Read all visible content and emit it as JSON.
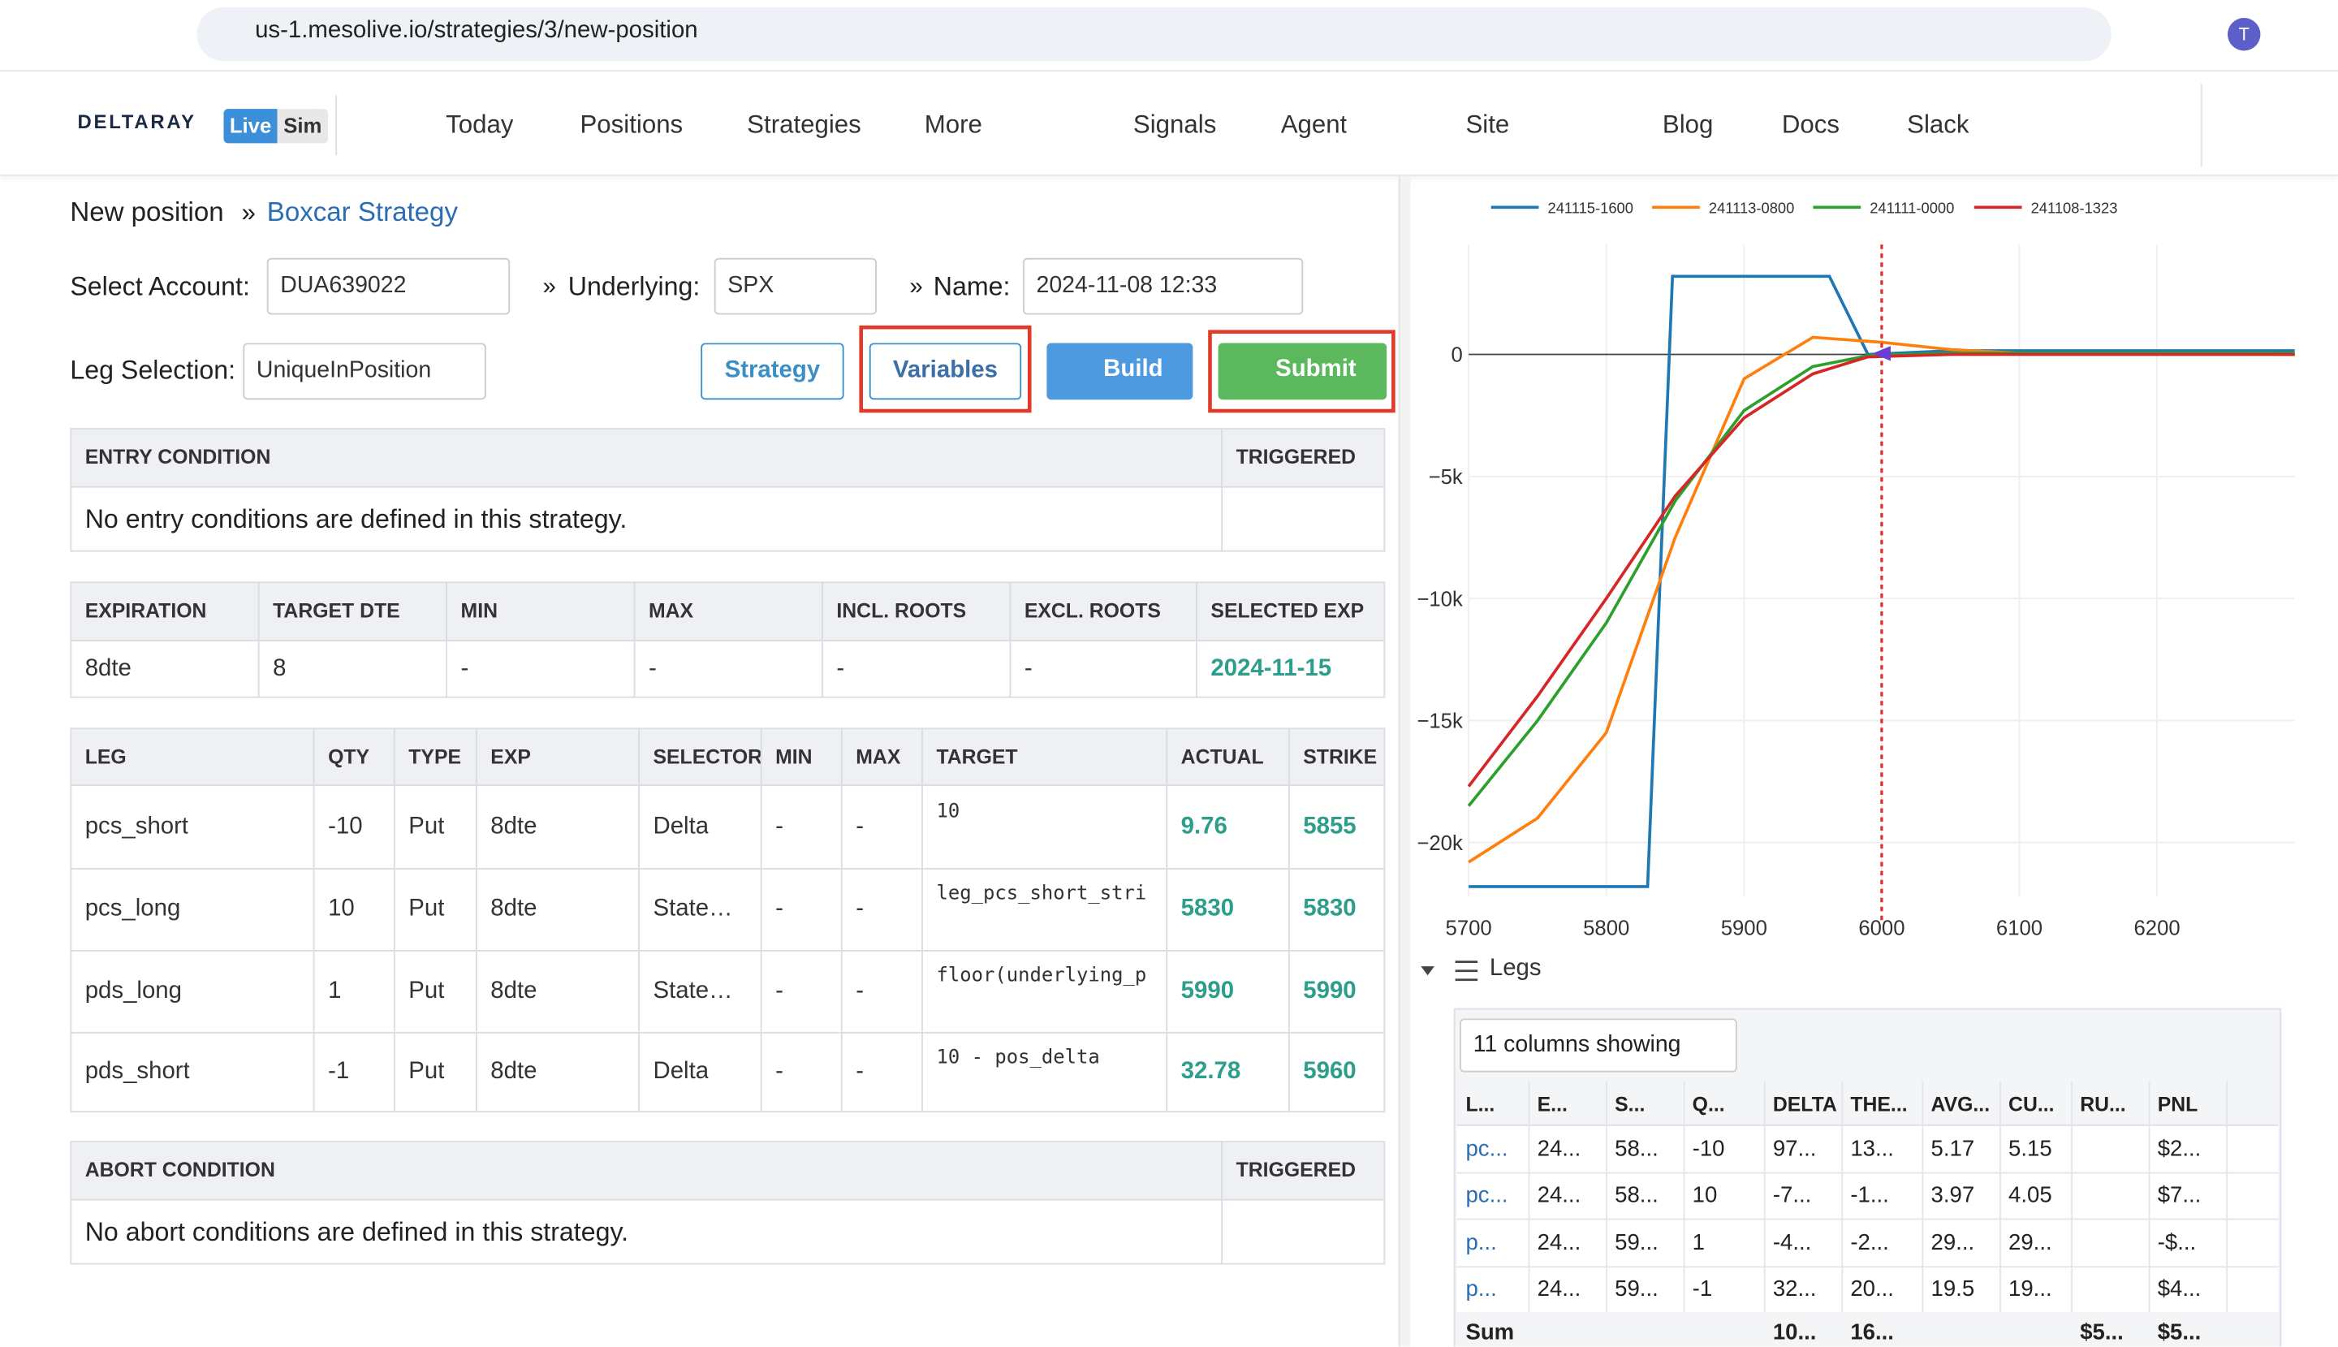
{
  "browser": {
    "url": "us-1.mesolive.io/strategies/3/new-position",
    "avatar": "T"
  },
  "nav": {
    "brand": "DELTARAY",
    "modes": [
      "Live",
      "Sim"
    ],
    "items": [
      "Today",
      "Positions",
      "Strategies",
      "More",
      "Signals",
      "Agent",
      "Site",
      "Blog",
      "Docs",
      "Slack"
    ]
  },
  "breadcrumb": {
    "page": "New position",
    "separator": "»",
    "link": "Boxcar Strategy"
  },
  "form": {
    "account_label": "Select Account:",
    "account": "DUA639022",
    "underlying_label": "Underlying:",
    "underlying": "SPX",
    "name_label": "Name:",
    "name": "2024-11-08 12:33",
    "leg_label": "Leg Selection:",
    "leg": "UniqueInPosition",
    "buttons": [
      "Strategy",
      "Variables",
      "Build",
      "Submit"
    ]
  },
  "entry": {
    "headers": [
      "ENTRY CONDITION",
      "TRIGGERED"
    ],
    "message": "No entry conditions are defined in this strategy."
  },
  "expiration": {
    "headers": [
      "EXPIRATION",
      "TARGET DTE",
      "MIN",
      "MAX",
      "INCL. ROOTS",
      "EXCL. ROOTS",
      "SELECTED EXP"
    ],
    "rows": [
      [
        "8dte",
        "8",
        "-",
        "-",
        "-",
        "-",
        "2024-11-15"
      ]
    ]
  },
  "legs": {
    "headers": [
      "LEG",
      "QTY",
      "TYPE",
      "EXP",
      "SELECTOR",
      "MIN",
      "MAX",
      "TARGET",
      "ACTUAL",
      "STRIKE"
    ],
    "rows": [
      [
        "pcs_short",
        "-10",
        "Put",
        "8dte",
        "Delta",
        "-",
        "-",
        "10",
        "9.76",
        "5855"
      ],
      [
        "pcs_long",
        "10",
        "Put",
        "8dte",
        "State…",
        "-",
        "-",
        "leg_pcs_short_stri",
        "5830",
        "5830"
      ],
      [
        "pds_long",
        "1",
        "Put",
        "8dte",
        "State…",
        "-",
        "-",
        "floor(underlying_p",
        "5990",
        "5990"
      ],
      [
        "pds_short",
        "-1",
        "Put",
        "8dte",
        "Delta",
        "-",
        "-",
        "10 - pos_delta",
        "32.78",
        "5960"
      ]
    ]
  },
  "abort": {
    "headers": [
      "ABORT CONDITION",
      "TRIGGERED"
    ],
    "message": "No abort conditions are defined in this strategy."
  },
  "chart_data": {
    "type": "line",
    "xlim": [
      5700,
      6300
    ],
    "ylim": [
      -22200,
      4500
    ],
    "xticks": [
      5700,
      5800,
      5900,
      6000,
      6100,
      6200
    ],
    "yticks": [
      0,
      {
        "value": -5000,
        "label": "−5k"
      },
      {
        "value": -10000,
        "label": "−10k"
      },
      {
        "value": -15000,
        "label": "−15k"
      },
      {
        "value": -20000,
        "label": "−20k"
      }
    ],
    "grid": true,
    "vline": 6000,
    "vline_color": "#e03030",
    "series": [
      {
        "name": "241115-1600",
        "color": "#1f77b4",
        "x": [
          5700,
          5830,
          5848,
          5962,
          5990,
          6050,
          6300
        ],
        "values": [
          -21800,
          -21800,
          3200,
          3200,
          0,
          150,
          150
        ]
      },
      {
        "name": "241113-0800",
        "color": "#ff7f0e",
        "x": [
          5700,
          5750,
          5800,
          5850,
          5900,
          5950,
          6000,
          6050,
          6100,
          6300
        ],
        "values": [
          -20800,
          -19000,
          -15500,
          -7500,
          -1000,
          700,
          500,
          200,
          50,
          0
        ]
      },
      {
        "name": "241111-0000",
        "color": "#2ca02c",
        "x": [
          5700,
          5750,
          5800,
          5850,
          5900,
          5950,
          5990,
          6050,
          6300
        ],
        "values": [
          -18500,
          -15000,
          -11000,
          -6000,
          -2300,
          -500,
          -50,
          50,
          50
        ]
      },
      {
        "name": "241108-1323",
        "color": "#d62728",
        "x": [
          5700,
          5750,
          5800,
          5850,
          5900,
          5950,
          5990,
          6050,
          6300
        ],
        "values": [
          -17700,
          -14000,
          -10000,
          -5800,
          -2600,
          -800,
          -100,
          0,
          0
        ]
      }
    ]
  },
  "legs_grid": {
    "title": "Legs",
    "columns_showing": "11 columns showing",
    "headers": [
      "L...",
      "E...",
      "S...",
      "Q...",
      "DELTA",
      "THE...",
      "AVG...",
      "CU...",
      "RU...",
      "PNL"
    ],
    "rows": [
      [
        "pc...",
        "24...",
        "58...",
        "-10",
        "97...",
        "13...",
        "5.17",
        "5.15",
        null,
        "$2..."
      ],
      [
        "pc...",
        "24...",
        "58...",
        "10",
        "-7...",
        "-1...",
        "3.97",
        "4.05",
        null,
        "$7..."
      ],
      [
        "p...",
        "24...",
        "59...",
        "1",
        "-4...",
        "-2...",
        "29...",
        "29...",
        null,
        "-$..."
      ],
      [
        "p...",
        "24...",
        "59...",
        "-1",
        "32...",
        "20...",
        "19.5",
        "19...",
        null,
        "$4..."
      ]
    ],
    "sum": [
      "Sum",
      null,
      null,
      null,
      "10...",
      "16...",
      null,
      null,
      "$5...",
      "$5..."
    ]
  }
}
